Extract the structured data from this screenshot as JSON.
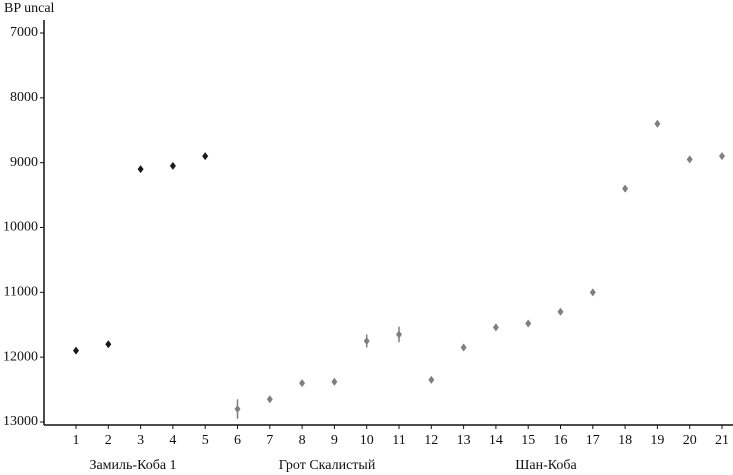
{
  "chart_data": {
    "type": "scatter",
    "y_label": "BP uncal",
    "categories": [
      "1",
      "2",
      "3",
      "4",
      "5",
      "6",
      "7",
      "8",
      "9",
      "10",
      "11",
      "12",
      "13",
      "14",
      "15",
      "16",
      "17",
      "18",
      "19",
      "20",
      "21"
    ],
    "ylim": [
      7000,
      13000
    ],
    "y_inverted": true,
    "yticks": [
      7000,
      8000,
      9000,
      10000,
      11000,
      12000,
      13000
    ],
    "series": [
      {
        "name": "Замиль-Коба 1",
        "color": "#1a1a1a",
        "values": [
          11900,
          11800,
          9100,
          9050,
          8900,
          null,
          null,
          null,
          null,
          null,
          null,
          null,
          null,
          null,
          null,
          null,
          null,
          null,
          null,
          null,
          null
        ],
        "errors": [
          40,
          40,
          40,
          40,
          40,
          null,
          null,
          null,
          null,
          null,
          null,
          null,
          null,
          null,
          null,
          null,
          null,
          null,
          null,
          null,
          null
        ]
      },
      {
        "name": "Грот Скалистый",
        "color": "#7f7f7f",
        "values": [
          null,
          null,
          null,
          null,
          null,
          12800,
          12650,
          12400,
          12380,
          11750,
          11650,
          12350,
          null,
          null,
          null,
          null,
          null,
          null,
          null,
          null,
          null
        ],
        "errors": [
          null,
          null,
          null,
          null,
          null,
          150,
          50,
          50,
          50,
          100,
          120,
          50,
          null,
          null,
          null,
          null,
          null,
          null,
          null,
          null,
          null
        ]
      },
      {
        "name": "Шан-Коба",
        "color": "#7f7f7f",
        "values": [
          null,
          null,
          null,
          null,
          null,
          null,
          null,
          null,
          null,
          null,
          null,
          null,
          11850,
          11540,
          11480,
          11300,
          11000,
          9400,
          8400,
          8950,
          8900
        ],
        "errors": [
          null,
          null,
          null,
          null,
          null,
          null,
          null,
          null,
          null,
          null,
          null,
          null,
          50,
          50,
          50,
          50,
          50,
          50,
          50,
          40,
          40
        ]
      }
    ]
  }
}
